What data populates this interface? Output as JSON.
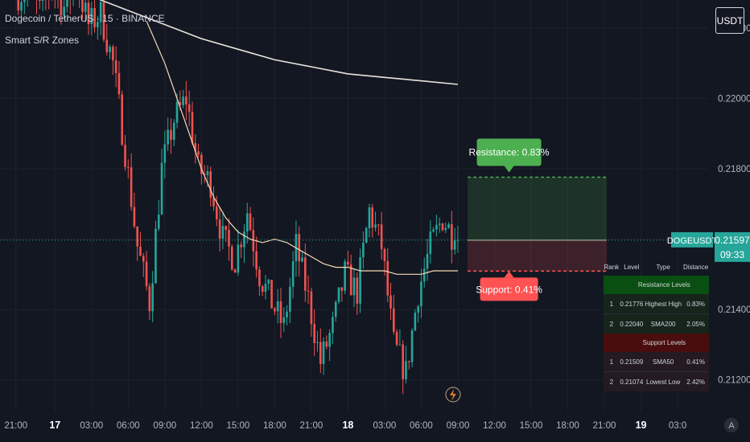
{
  "header": {
    "symbol_line": "Dogecoin / TetherUS · 15 · BINANCE",
    "indicator_name": "Smart S/R Zones"
  },
  "currency_button": "USDT",
  "colors": {
    "background": "#131722",
    "up": "#26a69a",
    "down": "#ef5350",
    "sma50": "#f6d9b4",
    "sma200": "#e8e4dc",
    "resistance": "#4caf50",
    "support": "#ff5252"
  },
  "chart_data": {
    "type": "candlestick",
    "y_axis": {
      "range": [
        0.2111,
        0.2228
      ],
      "ticks": [
        "0.22200",
        "0.22000",
        "0.21800",
        "0.21600",
        "0.21400",
        "0.21200"
      ],
      "tick_values": [
        0.222,
        0.22,
        0.218,
        0.216,
        0.214,
        0.212
      ]
    },
    "x_axis": {
      "ticks": [
        "21:00",
        "17",
        "03:00",
        "06:00",
        "09:00",
        "12:00",
        "15:00",
        "18:00",
        "21:00",
        "18",
        "03:00",
        "06:00",
        "09:00",
        "12:00",
        "15:00",
        "18:00",
        "21:00",
        "19",
        "03:0"
      ],
      "bold_ticks": [
        "17",
        "18",
        "19"
      ]
    },
    "last_price": {
      "symbol": "DOGEUSDT",
      "price": "0.21597",
      "countdown": "09:33",
      "value": 0.21597
    },
    "resistance_zone": {
      "label": "Resistance: 0.83%",
      "top": 0.21776,
      "bottom": 0.21597
    },
    "support_zone": {
      "label": "Support: 0.41%",
      "top": 0.21597,
      "bottom": 0.21509
    },
    "series_sma200": [
      [
        3,
        0.2232
      ],
      [
        6,
        0.2229
      ],
      [
        9,
        0.2225
      ],
      [
        12,
        0.2221
      ],
      [
        15,
        0.2217
      ],
      [
        18,
        0.2214
      ],
      [
        21,
        0.2211
      ],
      [
        24,
        0.2209
      ],
      [
        27,
        0.2207
      ],
      [
        30,
        0.2206
      ],
      [
        33,
        0.2205
      ],
      [
        36,
        0.2204
      ]
    ],
    "series_sma50": [
      [
        10.5,
        0.2222
      ],
      [
        12,
        0.221
      ],
      [
        13,
        0.22
      ],
      [
        14,
        0.219
      ],
      [
        15,
        0.218
      ],
      [
        16,
        0.2172
      ],
      [
        17,
        0.2166
      ],
      [
        18,
        0.2162
      ],
      [
        19,
        0.216
      ],
      [
        20,
        0.2159
      ],
      [
        21,
        0.216
      ],
      [
        22,
        0.2159
      ],
      [
        23,
        0.2157
      ],
      [
        24,
        0.2155
      ],
      [
        25,
        0.2153
      ],
      [
        26,
        0.2152
      ],
      [
        27,
        0.2152
      ],
      [
        28,
        0.2151
      ],
      [
        29,
        0.2151
      ],
      [
        30,
        0.2151
      ],
      [
        31,
        0.215
      ],
      [
        32,
        0.215
      ],
      [
        33,
        0.215
      ],
      [
        34,
        0.2151
      ],
      [
        35,
        0.2151
      ],
      [
        36,
        0.2151
      ]
    ],
    "price_path": [
      [
        0,
        0.2229
      ],
      [
        1,
        0.2231
      ],
      [
        2,
        0.2225
      ],
      [
        3,
        0.2232
      ],
      [
        4,
        0.2226
      ],
      [
        5,
        0.2233
      ],
      [
        6,
        0.2221
      ],
      [
        7,
        0.2224
      ],
      [
        8,
        0.221
      ],
      [
        9,
        0.2185
      ],
      [
        10,
        0.2158
      ],
      [
        11,
        0.2142
      ],
      [
        12,
        0.218
      ],
      [
        13,
        0.2194
      ],
      [
        14,
        0.22
      ],
      [
        15,
        0.218
      ],
      [
        16,
        0.2176
      ],
      [
        17,
        0.216
      ],
      [
        18,
        0.2154
      ],
      [
        19,
        0.2168
      ],
      [
        20,
        0.215
      ],
      [
        21,
        0.2142
      ],
      [
        22,
        0.2135
      ],
      [
        23,
        0.2158
      ],
      [
        24,
        0.2143
      ],
      [
        25,
        0.2125
      ],
      [
        26,
        0.2135
      ],
      [
        27,
        0.215
      ],
      [
        28,
        0.2145
      ],
      [
        29,
        0.2168
      ],
      [
        30,
        0.2158
      ],
      [
        31,
        0.213
      ],
      [
        32,
        0.2122
      ],
      [
        33,
        0.2145
      ],
      [
        34,
        0.2158
      ],
      [
        35,
        0.2166
      ],
      [
        36,
        0.216
      ]
    ],
    "x_tick_positions": [
      -0.2,
      3,
      6,
      9,
      12,
      15,
      18,
      21,
      24,
      27,
      30,
      33,
      36,
      39,
      42,
      45,
      48,
      51,
      54
    ],
    "x_range": [
      -1.5,
      56.5
    ],
    "plot_width": 880
  },
  "levels_table": {
    "headers": [
      "Rank",
      "Level",
      "Type",
      "Distance"
    ],
    "resistance_title": "Resistance Levels",
    "resistance": [
      {
        "rank": "1",
        "level": "0.21776",
        "type": "Highest High",
        "distance": "0.83%"
      },
      {
        "rank": "2",
        "level": "0.22040",
        "type": "SMA200",
        "distance": "2.05%"
      }
    ],
    "support_title": "Support Levels",
    "support": [
      {
        "rank": "1",
        "level": "0.21509",
        "type": "SMA50",
        "distance": "0.41%"
      },
      {
        "rank": "2",
        "level": "0.21074",
        "type": "Lowest Low",
        "distance": "2.42%"
      }
    ]
  },
  "footer_badge": "A"
}
